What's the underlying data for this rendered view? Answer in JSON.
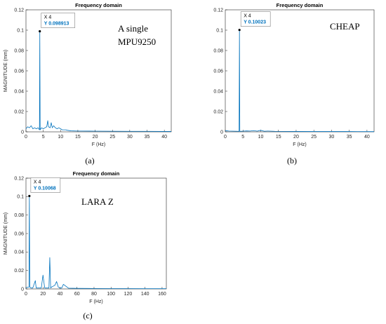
{
  "chart_data": [
    {
      "type": "line",
      "title": "Frequency domain",
      "xlabel": "F (Hz)",
      "ylabel": "MAGNITUDE (mm)",
      "xlim": [
        0,
        42
      ],
      "ylim": [
        0,
        0.12
      ],
      "xticks": [
        0,
        5,
        10,
        15,
        20,
        25,
        30,
        35,
        40
      ],
      "yticks": [
        0,
        0.02,
        0.04,
        0.06,
        0.08,
        0.1,
        0.12
      ],
      "ytick_labels": [
        "0",
        "0.02",
        "0.04",
        "0.06",
        "0.08",
        "0.1",
        "0.12"
      ],
      "annotation": "A single MPU9250",
      "annotation_lines": [
        "A single",
        "MPU9250"
      ],
      "caption": "(a)",
      "peak": {
        "x": 4,
        "y": 0.098913,
        "x_label": "X 4",
        "y_label": "Y 0.098913"
      },
      "series": [
        {
          "x": [
            0,
            0.5,
            1,
            1.5,
            2,
            2.5,
            3,
            3.5,
            3.9,
            4,
            4.1,
            4.5,
            5,
            5.5,
            6,
            6.3,
            6.5,
            7,
            7.3,
            7.6,
            8,
            8.5,
            9,
            9.5,
            10,
            10.5,
            11,
            11.5,
            12,
            13,
            15,
            20,
            25,
            30,
            35,
            40,
            42
          ],
          "y": [
            0.003,
            0.005,
            0.004,
            0.006,
            0.003,
            0.004,
            0.003,
            0.004,
            0.002,
            0.098913,
            0.002,
            0.004,
            0.003,
            0.004,
            0.005,
            0.011,
            0.005,
            0.004,
            0.009,
            0.004,
            0.006,
            0.004,
            0.003,
            0.004,
            0.003,
            0.002,
            0.002,
            0.002,
            0.0015,
            0.001,
            0.0008,
            0.0007,
            0.0006,
            0.0005,
            0.0005,
            0.0004,
            0.0004
          ]
        }
      ]
    },
    {
      "type": "line",
      "title": "Frequency domain",
      "xlabel": "F (Hz)",
      "ylabel": "",
      "xlim": [
        0,
        42
      ],
      "ylim": [
        0,
        0.12
      ],
      "xticks": [
        0,
        5,
        10,
        15,
        20,
        25,
        30,
        35,
        40
      ],
      "yticks": [
        0,
        0.02,
        0.04,
        0.06,
        0.08,
        0.1,
        0.12
      ],
      "ytick_labels": [
        "0",
        "0.02",
        "0.04",
        "0.06",
        "0.08",
        "0.1",
        "0.12"
      ],
      "annotation": "CHEAP",
      "annotation_lines": [
        "CHEAP"
      ],
      "caption": "(b)",
      "peak": {
        "x": 4,
        "y": 0.10023,
        "x_label": "X 4",
        "y_label": "Y 0.10023"
      },
      "series": [
        {
          "x": [
            0,
            0.5,
            1,
            2,
            3,
            3.9,
            4,
            4.1,
            5,
            6,
            7,
            8,
            9,
            10,
            11,
            12,
            14,
            20,
            25,
            30,
            35,
            40,
            42
          ],
          "y": [
            0.001,
            0.001,
            0.0008,
            0.0007,
            0.0006,
            0.0005,
            0.10023,
            0.0005,
            0.0007,
            0.0009,
            0.0008,
            0.0012,
            0.0007,
            0.0015,
            0.0006,
            0.0008,
            0.0005,
            0.0004,
            0.0003,
            0.0003,
            0.0003,
            0.0002,
            0.0002
          ]
        }
      ]
    },
    {
      "type": "line",
      "title": "Frequency domain",
      "xlabel": "F (Hz)",
      "ylabel": "MAGNITUDE (mm)",
      "xlim": [
        0,
        165
      ],
      "ylim": [
        0,
        0.12
      ],
      "xticks": [
        0,
        20,
        40,
        60,
        80,
        100,
        120,
        140,
        160
      ],
      "yticks": [
        0,
        0.02,
        0.04,
        0.06,
        0.08,
        0.1,
        0.12
      ],
      "ytick_labels": [
        "0",
        "0.02",
        "0.04",
        "0.06",
        "0.08",
        "0.1",
        "0.12"
      ],
      "annotation": "LARA Z",
      "annotation_lines": [
        "LARA Z"
      ],
      "caption": "(c)",
      "peak": {
        "x": 4,
        "y": 0.10068,
        "x_label": "X 4",
        "y_label": "Y 0.10068"
      },
      "series": [
        {
          "x": [
            0,
            2,
            3.5,
            4,
            4.5,
            6,
            8,
            11,
            12,
            14,
            18,
            20,
            22,
            24,
            27,
            28,
            29,
            30,
            32,
            34,
            36,
            38,
            40,
            42,
            44,
            50,
            60,
            80,
            100,
            120,
            140,
            160,
            165
          ],
          "y": [
            0.001,
            0.002,
            0.002,
            0.10068,
            0.002,
            0.001,
            0.001,
            0.009,
            0.001,
            0.001,
            0.001,
            0.015,
            0.001,
            0.001,
            0.001,
            0.034,
            0.001,
            0.002,
            0.003,
            0.004,
            0.008,
            0.002,
            0.001,
            0.001,
            0.005,
            0.0008,
            0.0006,
            0.0005,
            0.0004,
            0.0004,
            0.0003,
            0.0003,
            0.0003
          ]
        }
      ]
    }
  ]
}
